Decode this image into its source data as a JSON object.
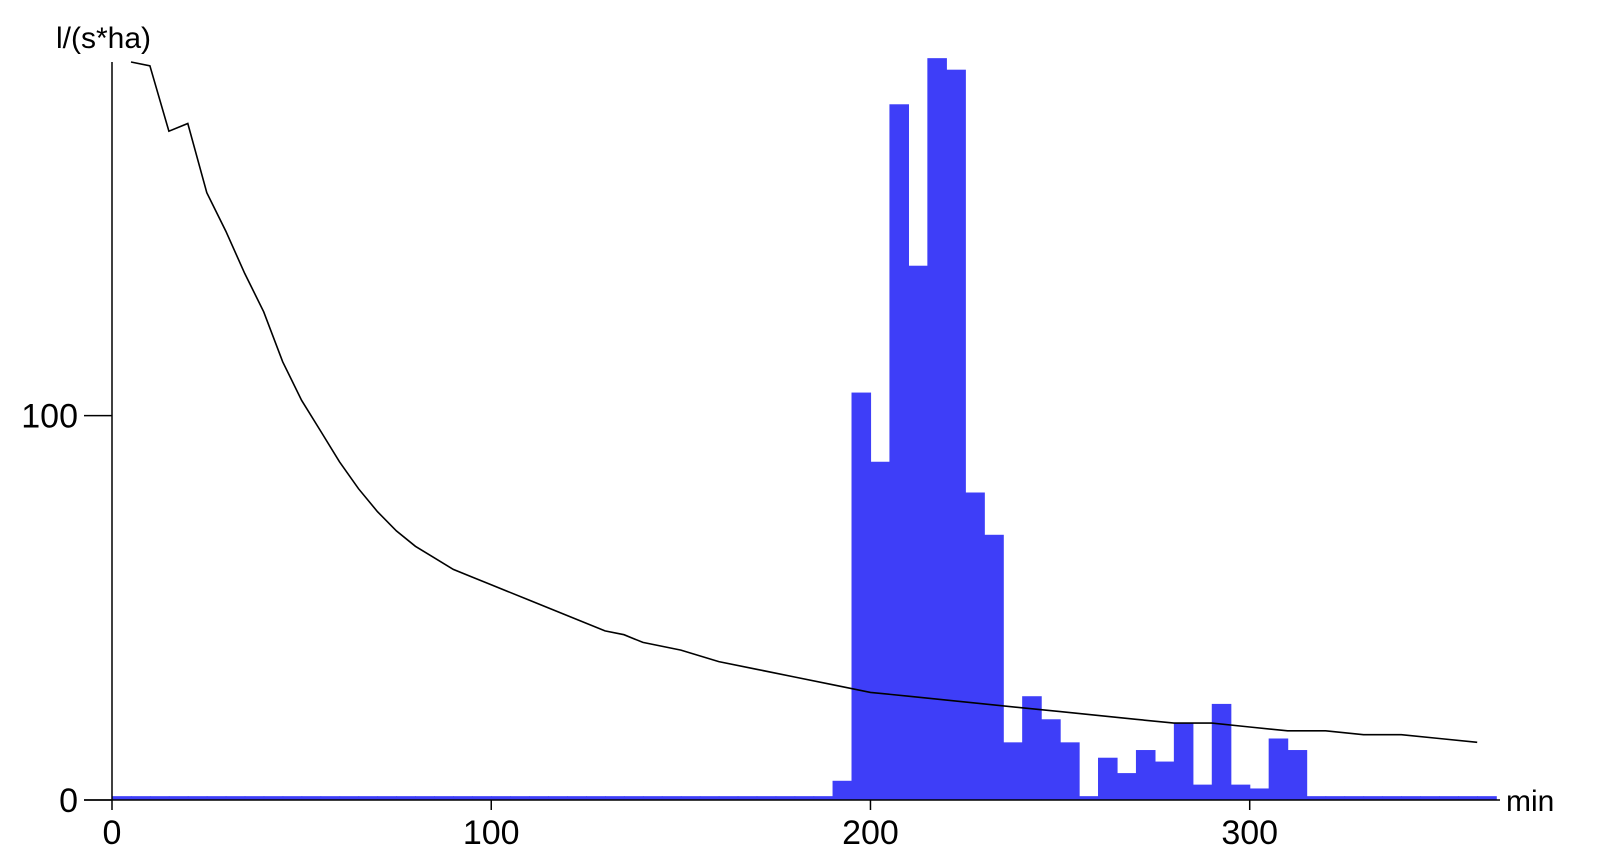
{
  "chart_data": {
    "type": "bar",
    "ylabel": "l/(s*ha)",
    "xlabel": "min",
    "xlim": [
      0,
      366
    ],
    "ylim": [
      0,
      192
    ],
    "x_ticks": [
      0,
      100,
      200,
      300
    ],
    "y_ticks": [
      0,
      100
    ],
    "grid": false,
    "colors": {
      "bars": "#3e3ef8",
      "line": "#000000",
      "axes": "#000000"
    },
    "series": [
      {
        "type": "bar",
        "bin_width": 5,
        "x": [
          0,
          5,
          10,
          15,
          20,
          25,
          30,
          35,
          40,
          45,
          50,
          55,
          60,
          65,
          70,
          75,
          80,
          85,
          90,
          95,
          100,
          105,
          110,
          115,
          120,
          125,
          130,
          135,
          140,
          145,
          150,
          155,
          160,
          165,
          170,
          175,
          180,
          185,
          190,
          195,
          200,
          205,
          210,
          215,
          220,
          225,
          230,
          235,
          240,
          245,
          250,
          255,
          260,
          265,
          270,
          275,
          280,
          285,
          290,
          295,
          300,
          305,
          310,
          315,
          320,
          325,
          330,
          335,
          340,
          345,
          350,
          355,
          360
        ],
        "values": [
          1,
          1,
          1,
          1,
          1,
          1,
          1,
          1,
          1,
          1,
          1,
          1,
          1,
          1,
          1,
          1,
          1,
          1,
          1,
          1,
          1,
          1,
          1,
          1,
          1,
          1,
          1,
          1,
          1,
          1,
          1,
          1,
          1,
          1,
          1,
          1,
          1,
          1,
          5,
          106,
          88,
          181,
          139,
          193,
          190,
          80,
          69,
          15,
          27,
          21,
          15,
          1,
          11,
          7,
          13,
          10,
          20,
          4,
          25,
          4,
          3,
          16,
          13,
          1,
          1,
          1,
          1,
          1,
          1,
          1,
          1,
          1,
          1
        ]
      },
      {
        "type": "line",
        "x": [
          5,
          10,
          15,
          20,
          25,
          30,
          35,
          40,
          45,
          50,
          55,
          60,
          65,
          70,
          75,
          80,
          85,
          90,
          95,
          100,
          110,
          120,
          130,
          135,
          140,
          150,
          160,
          170,
          180,
          190,
          200,
          210,
          220,
          230,
          240,
          250,
          260,
          270,
          280,
          290,
          300,
          310,
          320,
          330,
          340,
          350,
          360
        ],
        "values": [
          192,
          191,
          174,
          176,
          158,
          148,
          137,
          127,
          114,
          104,
          96,
          88,
          81,
          75,
          70,
          66,
          63,
          60,
          58,
          56,
          52,
          48,
          44,
          43,
          41,
          39,
          36,
          34,
          32,
          30,
          28,
          27,
          26,
          25,
          24,
          23,
          22,
          21,
          20,
          20,
          19,
          18,
          18,
          17,
          17,
          16,
          15
        ]
      }
    ]
  }
}
